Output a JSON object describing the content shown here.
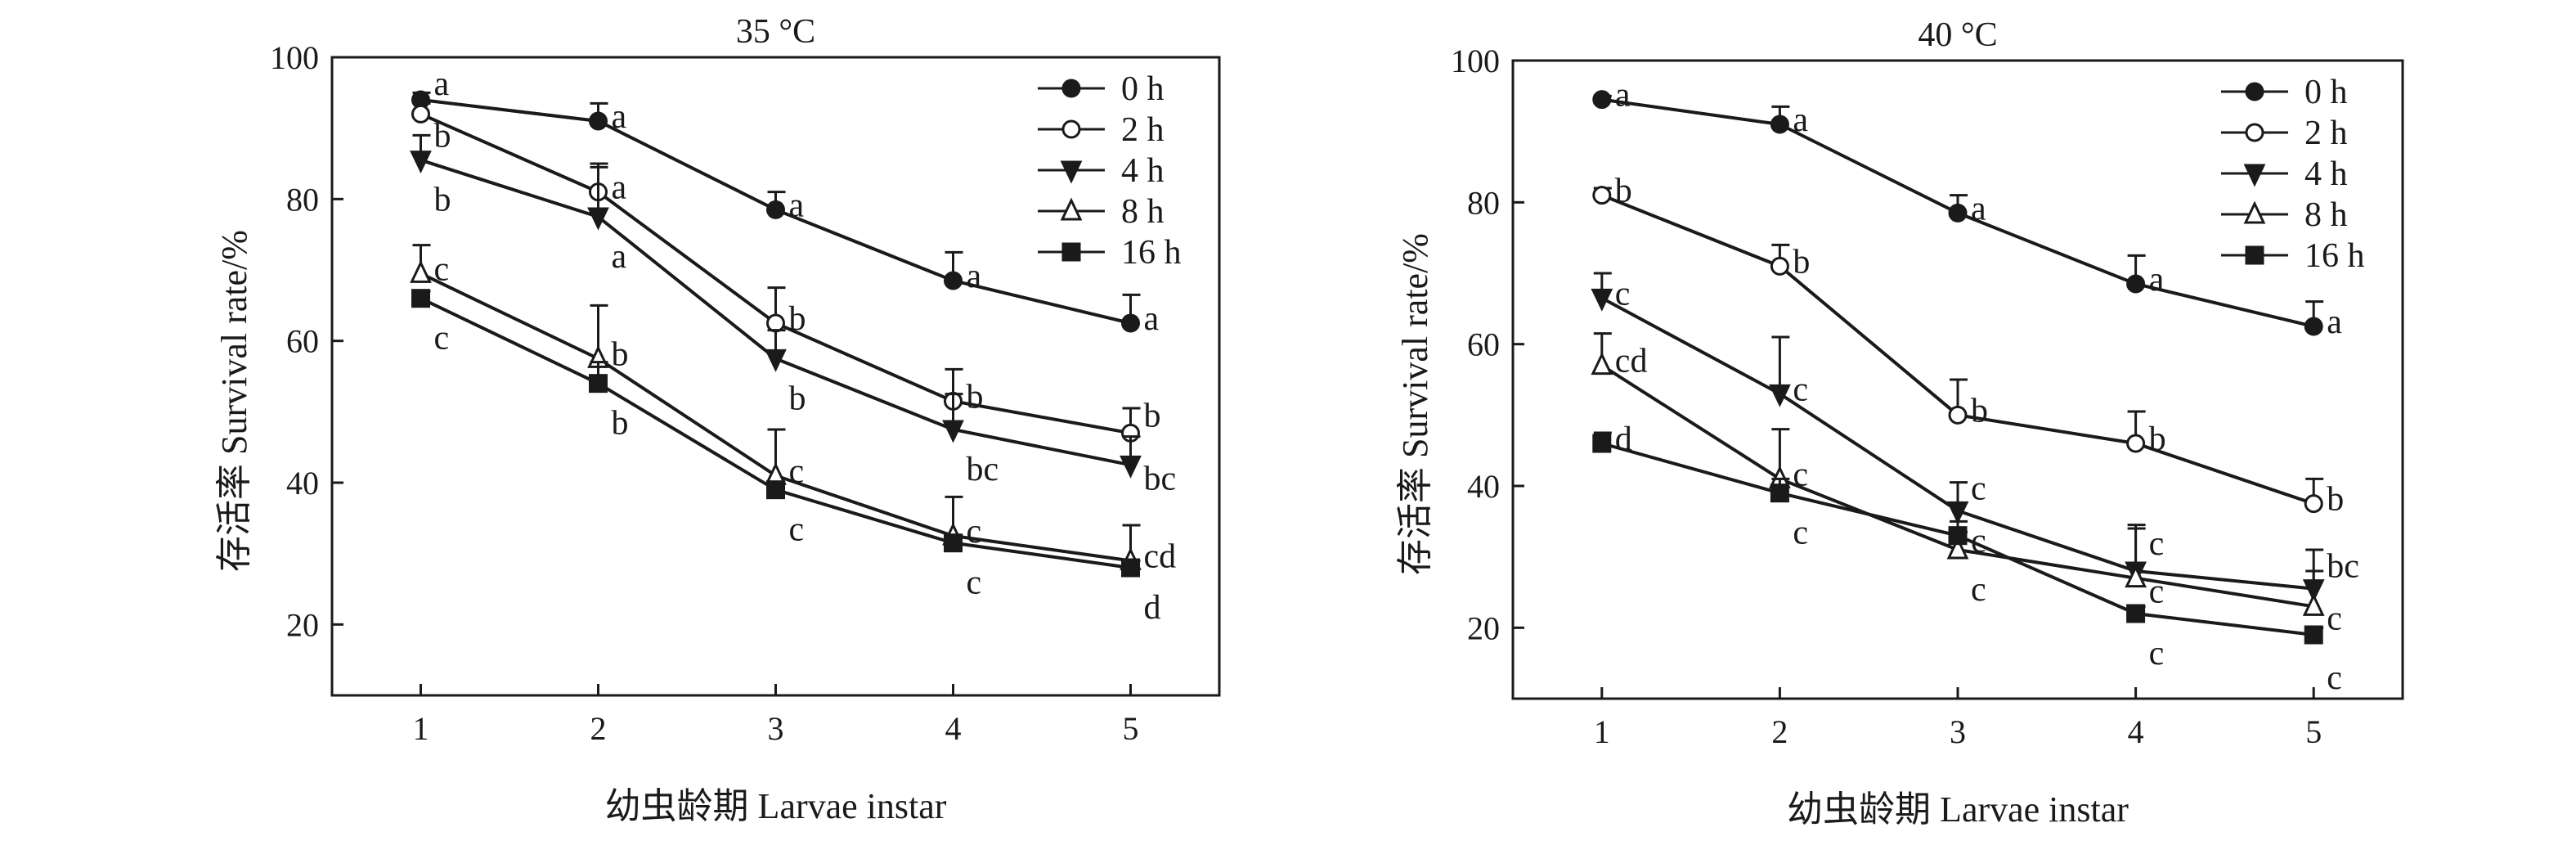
{
  "chart_data": [
    {
      "type": "line",
      "title": "35 °C",
      "xlabel": "幼虫龄期 Larvae instar",
      "ylabel": "存活率 Survival rate/%",
      "x": [
        1,
        2,
        3,
        4,
        5
      ],
      "xticks": [
        "1",
        "2",
        "3",
        "4",
        "5"
      ],
      "yticks": [
        20,
        40,
        60,
        80,
        100
      ],
      "ylim": [
        10,
        100
      ],
      "xlim": [
        0.5,
        5.5
      ],
      "legend": "top-right",
      "series": [
        {
          "name": "0 h",
          "marker": "filled-circle",
          "values": [
            94,
            91,
            78.5,
            68.5,
            62.5
          ],
          "error": [
            1,
            2.5,
            2.5,
            4,
            4
          ],
          "letters": [
            "a",
            "a",
            "a",
            "a",
            "a"
          ]
        },
        {
          "name": "2 h",
          "marker": "open-circle",
          "values": [
            92,
            81,
            62.5,
            51.5,
            47
          ],
          "error": [
            1.5,
            4,
            5,
            4.5,
            3.5
          ],
          "letters": [
            "b",
            "a",
            "b",
            "b",
            "b"
          ]
        },
        {
          "name": "4 h",
          "marker": "filled-triangle-down",
          "values": [
            85.5,
            77.5,
            57.5,
            47.5,
            42.5
          ],
          "error": [
            3.5,
            7,
            4,
            5,
            4
          ],
          "letters": [
            "b",
            "a",
            "b",
            "bc",
            "bc"
          ]
        },
        {
          "name": "8 h",
          "marker": "open-triangle-up",
          "values": [
            69.5,
            57.5,
            41,
            32.5,
            29
          ],
          "error": [
            4,
            7.5,
            6.5,
            5.5,
            5
          ],
          "letters": [
            "c",
            "b",
            "c",
            "c",
            "cd"
          ]
        },
        {
          "name": "16 h",
          "marker": "filled-square",
          "values": [
            66,
            54,
            39,
            31.5,
            28
          ],
          "error": [
            1,
            3,
            1,
            1,
            1
          ],
          "letters": [
            "c",
            "b",
            "c",
            "c",
            "d"
          ]
        }
      ]
    },
    {
      "type": "line",
      "title": "40 °C",
      "xlabel": "幼虫龄期 Larvae instar",
      "ylabel": "存活率 Survival rate/%",
      "x": [
        1,
        2,
        3,
        4,
        5
      ],
      "xticks": [
        "1",
        "2",
        "3",
        "4",
        "5"
      ],
      "yticks": [
        20,
        40,
        60,
        80,
        100
      ],
      "ylim": [
        10,
        100
      ],
      "xlim": [
        0.5,
        5.5
      ],
      "legend": "top-right",
      "series": [
        {
          "name": "0 h",
          "marker": "filled-circle",
          "values": [
            94.5,
            91,
            78.5,
            68.5,
            62.5
          ],
          "error": [
            0.5,
            2.5,
            2.5,
            4,
            3.5
          ],
          "letters": [
            "a",
            "a",
            "a",
            "a",
            "a"
          ]
        },
        {
          "name": "2 h",
          "marker": "open-circle",
          "values": [
            81,
            71,
            50,
            46,
            37.5
          ],
          "error": [
            1,
            3,
            5,
            4.5,
            3.5
          ],
          "letters": [
            "b",
            "b",
            "b",
            "b",
            "b"
          ]
        },
        {
          "name": "4 h",
          "marker": "filled-triangle-down",
          "values": [
            66.5,
            53,
            36.5,
            28,
            25.5
          ],
          "error": [
            3.5,
            8,
            4,
            6.5,
            5.5
          ],
          "letters": [
            "c",
            "c",
            "c",
            "c",
            "bc"
          ]
        },
        {
          "name": "8 h",
          "marker": "open-triangle-up",
          "values": [
            57,
            41,
            31,
            27,
            23
          ],
          "error": [
            4.5,
            7,
            2.5,
            7,
            5
          ],
          "letters": [
            "cd",
            "c",
            "c",
            "c",
            "c"
          ]
        },
        {
          "name": "16 h",
          "marker": "filled-square",
          "values": [
            46,
            39,
            33,
            22,
            19
          ],
          "error": [
            1.5,
            2,
            2,
            1,
            1
          ],
          "letters": [
            "d",
            "c",
            "c",
            "c",
            "c"
          ]
        }
      ]
    }
  ]
}
